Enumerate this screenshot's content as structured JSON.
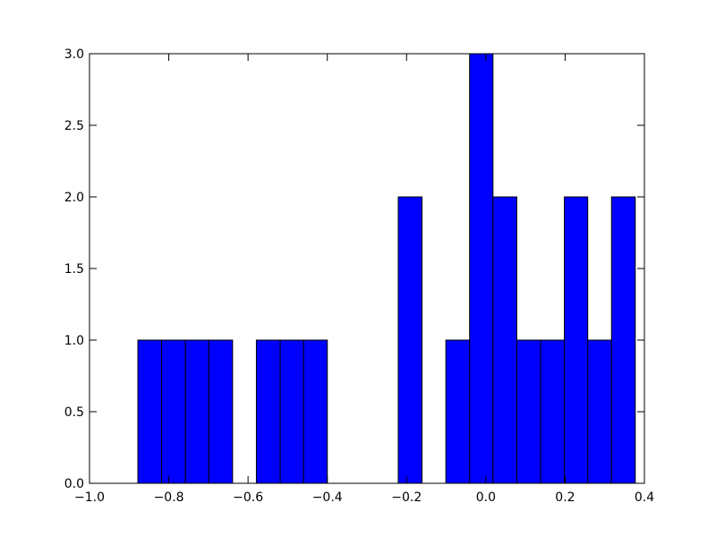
{
  "chart_data": {
    "type": "histogram",
    "bins": [
      -0.878,
      -0.818,
      -0.758,
      -0.699,
      -0.639,
      -0.579,
      -0.519,
      -0.46,
      -0.4,
      -0.34,
      -0.28,
      -0.221,
      -0.161,
      -0.101,
      -0.041,
      0.018,
      0.078,
      0.138,
      0.198,
      0.257,
      0.317,
      0.377
    ],
    "counts": [
      1,
      1,
      1,
      1,
      0,
      1,
      1,
      1,
      0,
      0,
      0,
      2,
      0,
      1,
      3,
      2,
      1,
      1,
      2,
      1,
      2
    ],
    "color": "#0000ff",
    "xlim": [
      -1.0,
      0.4
    ],
    "xticks": [
      {
        "value": -1.0,
        "label": "−1.0"
      },
      {
        "value": -0.8,
        "label": "−0.8"
      },
      {
        "value": -0.6,
        "label": "−0.6"
      },
      {
        "value": -0.4,
        "label": "−0.4"
      },
      {
        "value": -0.2,
        "label": "−0.2"
      },
      {
        "value": 0,
        "label": "0.0"
      },
      0.2,
      0.4
    ],
    "ylim": [
      0,
      3
    ],
    "yticks": [
      {
        "value": 0,
        "label": "0.0"
      },
      0.5,
      {
        "value": 1,
        "label": "1.0"
      },
      1.5,
      {
        "value": 2,
        "label": "2.0"
      },
      2.5,
      {
        "value": 3,
        "label": "3.0"
      }
    ],
    "grid": false
  }
}
